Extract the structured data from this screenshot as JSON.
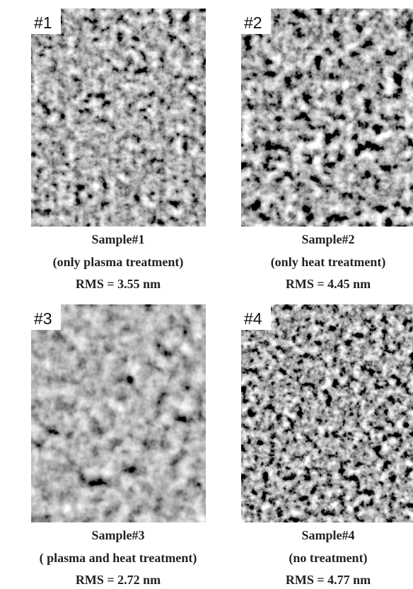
{
  "panels": [
    {
      "tag": "#1",
      "label": "Sample#1",
      "treatment": "(only plasma treatment)",
      "rms": "RMS = 3.55 nm"
    },
    {
      "tag": "#2",
      "label": "Sample#2",
      "treatment": "(only heat treatment)",
      "rms": "RMS = 4.45 nm"
    },
    {
      "tag": "#3",
      "label": "Sample#3",
      "treatment": "( plasma and heat treatment)",
      "rms": "RMS = 2.72 nm"
    },
    {
      "tag": "#4",
      "label": "Sample#4",
      "treatment": "(no treatment)",
      "rms": "RMS = 4.77 nm"
    }
  ]
}
